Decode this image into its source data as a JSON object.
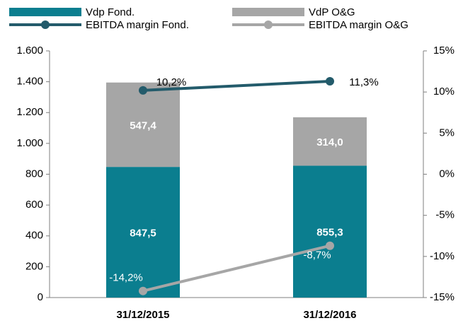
{
  "chart_data": {
    "type": "bar",
    "categories": [
      "31/12/2015",
      "31/12/2016"
    ],
    "series": [
      {
        "name": "Vdp Fond.",
        "type": "bar",
        "color": "#0b7e8f",
        "values": [
          847.5,
          855.3
        ],
        "value_labels": [
          "847,5",
          "855,3"
        ]
      },
      {
        "name": "VdP O&G",
        "type": "bar",
        "color": "#a6a6a6",
        "values": [
          547.4,
          314.0
        ],
        "value_labels": [
          "547,4",
          "314,0"
        ]
      },
      {
        "name": "EBITDA margin Fond.",
        "type": "line",
        "axis": "y2",
        "color": "#235b6b",
        "values": [
          10.2,
          11.3
        ],
        "value_labels": [
          "10,2%",
          "11,3%"
        ]
      },
      {
        "name": "EBITDA margin O&G",
        "type": "line",
        "axis": "y2",
        "color": "#a6a6a6",
        "values": [
          -14.2,
          -8.7
        ],
        "value_labels": [
          "-14,2%",
          "-8,7%"
        ]
      }
    ],
    "stacked": true,
    "ylim": [
      0,
      1600
    ],
    "yticks": [
      0,
      200,
      400,
      600,
      800,
      {
        "value": 1000,
        "label": "1.000"
      },
      {
        "value": 1200,
        "label": "1.200"
      },
      {
        "value": 1400,
        "label": "1.400"
      },
      {
        "value": 1600,
        "label": "1.600"
      }
    ],
    "y2lim": [
      -15,
      15
    ],
    "y2ticks": [
      {
        "value": -15,
        "label": "-15%"
      },
      {
        "value": -10,
        "label": "-10%"
      },
      {
        "value": -5,
        "label": "-5%"
      },
      {
        "value": 0,
        "label": "0%"
      },
      {
        "value": 5,
        "label": "5%"
      },
      {
        "value": 10,
        "label": "10%"
      },
      {
        "value": 15,
        "label": "15%"
      }
    ],
    "grid": false,
    "legend": "top"
  }
}
